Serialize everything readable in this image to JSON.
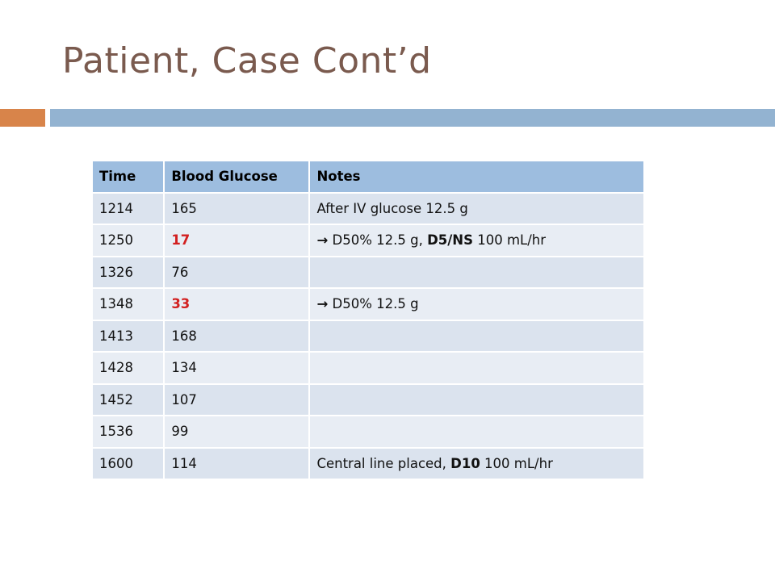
{
  "slide": {
    "title": "Patient, Case Cont’d"
  },
  "colors": {
    "title": "#7a5a4e",
    "accent_bar": "#d8844a",
    "rule_bar": "#93b3d1",
    "header_fill": "#9dbddf",
    "row_fill": "#dbe3ee",
    "row_fill_alt": "#e8edf4",
    "low_value": "#d21f1f"
  },
  "table": {
    "headers": {
      "time": "Time",
      "glucose": "Blood Glucose",
      "notes": "Notes"
    },
    "rows": [
      {
        "time": "1214",
        "glucose": "165",
        "glucose_low": false,
        "notes": {
          "arrow": "",
          "pre": "After IV glucose 12.5 g",
          "bold1": "",
          "mid": "",
          "bold2": "",
          "post": ""
        }
      },
      {
        "time": "1250",
        "glucose": "17",
        "glucose_low": true,
        "notes": {
          "arrow": "→",
          "pre": " D50% 12.5 g, ",
          "bold1": "D5/NS",
          "mid": " 100 mL/hr",
          "bold2": "",
          "post": ""
        }
      },
      {
        "time": "1326",
        "glucose": "76",
        "glucose_low": false,
        "notes": {
          "arrow": "",
          "pre": "",
          "bold1": "",
          "mid": "",
          "bold2": "",
          "post": ""
        }
      },
      {
        "time": "1348",
        "glucose": "33",
        "glucose_low": true,
        "notes": {
          "arrow": "→",
          "pre": " D50% 12.5 g",
          "bold1": "",
          "mid": "",
          "bold2": "",
          "post": ""
        }
      },
      {
        "time": "1413",
        "glucose": "168",
        "glucose_low": false,
        "notes": {
          "arrow": "",
          "pre": "",
          "bold1": "",
          "mid": "",
          "bold2": "",
          "post": ""
        }
      },
      {
        "time": "1428",
        "glucose": "134",
        "glucose_low": false,
        "notes": {
          "arrow": "",
          "pre": "",
          "bold1": "",
          "mid": "",
          "bold2": "",
          "post": ""
        }
      },
      {
        "time": "1452",
        "glucose": "107",
        "glucose_low": false,
        "notes": {
          "arrow": "",
          "pre": "",
          "bold1": "",
          "mid": "",
          "bold2": "",
          "post": ""
        }
      },
      {
        "time": "1536",
        "glucose": "99",
        "glucose_low": false,
        "notes": {
          "arrow": "",
          "pre": "",
          "bold1": "",
          "mid": "",
          "bold2": "",
          "post": ""
        }
      },
      {
        "time": "1600",
        "glucose": "114",
        "glucose_low": false,
        "notes": {
          "arrow": "",
          "pre": "Central line placed, ",
          "bold1": "D10",
          "mid": " 100 mL/hr",
          "bold2": "",
          "post": ""
        }
      }
    ]
  }
}
